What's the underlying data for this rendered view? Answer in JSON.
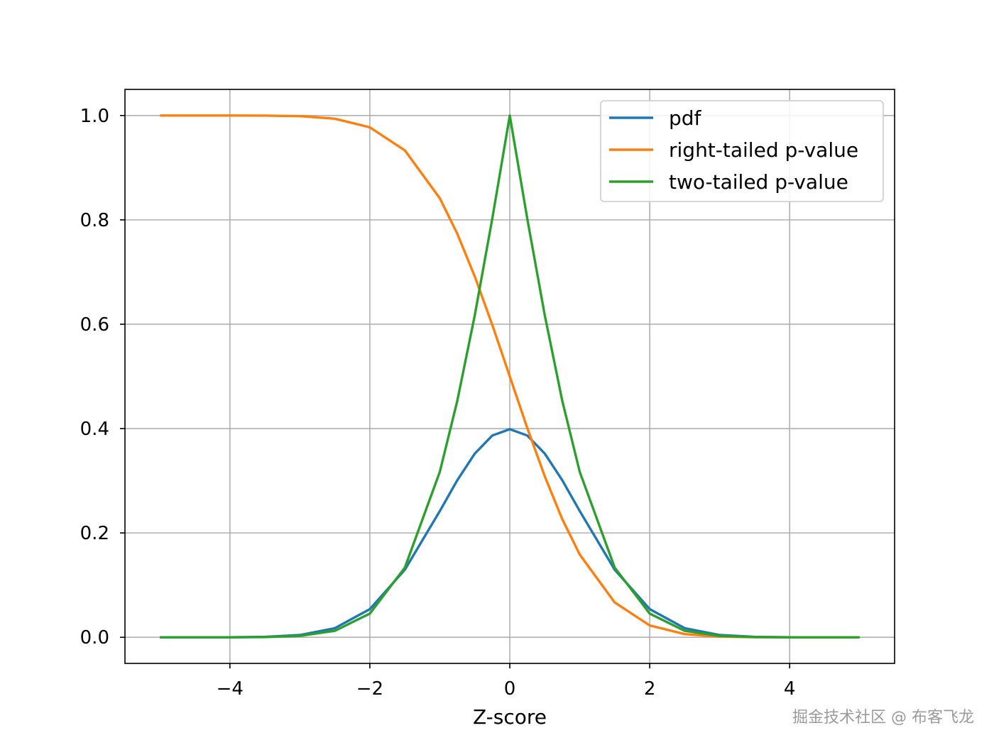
{
  "chart_data": {
    "type": "line",
    "title": "",
    "xlabel": "Z-score",
    "ylabel": "",
    "xlim": [
      -5.5,
      5.5
    ],
    "ylim": [
      -0.05,
      1.05
    ],
    "xticks": [
      -4,
      -2,
      0,
      2,
      4
    ],
    "xtick_labels": [
      "−4",
      "−2",
      "0",
      "2",
      "4"
    ],
    "yticks": [
      0.0,
      0.2,
      0.4,
      0.6,
      0.8,
      1.0
    ],
    "ytick_labels": [
      "0.0",
      "0.2",
      "0.4",
      "0.6",
      "0.8",
      "1.0"
    ],
    "grid": true,
    "legend_position": "top-right",
    "x": [
      -5.0,
      -4.5,
      -4.0,
      -3.5,
      -3.0,
      -2.5,
      -2.0,
      -1.5,
      -1.0,
      -0.75,
      -0.5,
      -0.25,
      0.0,
      0.25,
      0.5,
      0.75,
      1.0,
      1.5,
      2.0,
      2.5,
      3.0,
      3.5,
      4.0,
      4.5,
      5.0
    ],
    "series": [
      {
        "name": "pdf",
        "color": "#1f77b4",
        "values": [
          0.0,
          0.0,
          0.0001,
          0.0009,
          0.0044,
          0.0175,
          0.054,
          0.1295,
          0.242,
          0.3011,
          0.3521,
          0.3867,
          0.3989,
          0.3867,
          0.3521,
          0.3011,
          0.242,
          0.1295,
          0.054,
          0.0175,
          0.0044,
          0.0009,
          0.0001,
          0.0,
          0.0
        ]
      },
      {
        "name": "right-tailed p-value",
        "color": "#ff7f0e",
        "values": [
          1.0,
          1.0,
          1.0,
          0.9998,
          0.9987,
          0.9938,
          0.9772,
          0.9332,
          0.8413,
          0.7734,
          0.6915,
          0.5987,
          0.5,
          0.4013,
          0.3085,
          0.2266,
          0.1587,
          0.0668,
          0.0228,
          0.0062,
          0.0013,
          0.0002,
          0.0,
          0.0,
          0.0
        ]
      },
      {
        "name": "two-tailed p-value",
        "color": "#2ca02c",
        "values": [
          0.0,
          0.0,
          0.0001,
          0.0005,
          0.0027,
          0.0124,
          0.0455,
          0.1336,
          0.3173,
          0.4533,
          0.6171,
          0.8026,
          1.0,
          0.8026,
          0.6171,
          0.4533,
          0.3173,
          0.1336,
          0.0455,
          0.0124,
          0.0027,
          0.0005,
          0.0001,
          0.0,
          0.0
        ]
      }
    ]
  },
  "watermark": "掘金技术社区 @ 布客飞龙"
}
